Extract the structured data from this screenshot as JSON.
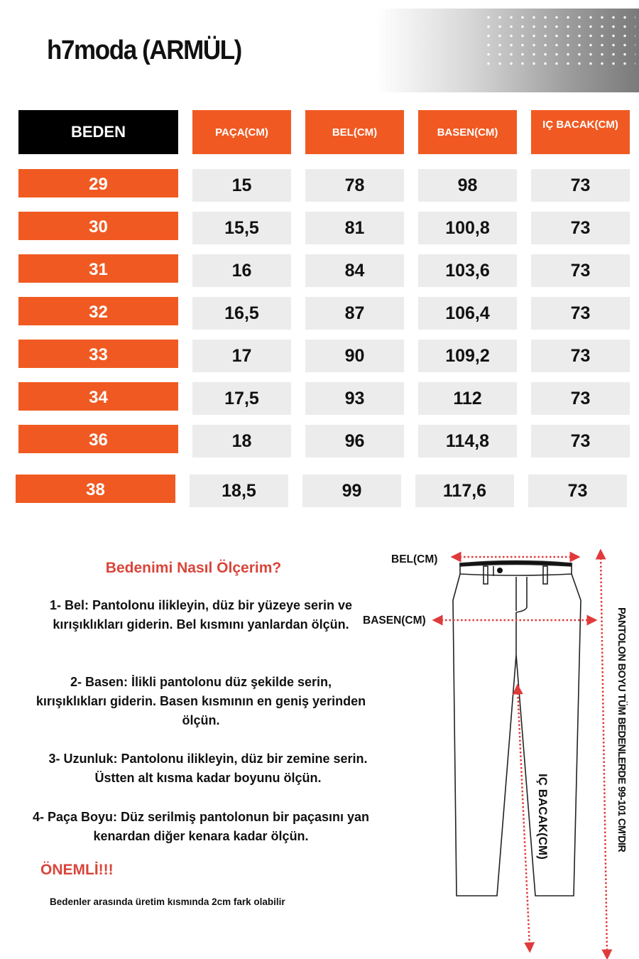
{
  "brand": "h7moda (ARMÜL)",
  "table": {
    "headers": [
      "BEDEN",
      "PAÇA(CM)",
      "BEL(CM)",
      "BASEN(CM)",
      "IÇ BACAK(CM)"
    ],
    "rows": [
      [
        "29",
        "15",
        "78",
        "98",
        "73"
      ],
      [
        "30",
        "15,5",
        "81",
        "100,8",
        "73"
      ],
      [
        "31",
        "16",
        "84",
        "103,6",
        "73"
      ],
      [
        "32",
        "16,5",
        "87",
        "106,4",
        "73"
      ],
      [
        "33",
        "17",
        "90",
        "109,2",
        "73"
      ],
      [
        "34",
        "17,5",
        "93",
        "112",
        "73"
      ],
      [
        "36",
        "18",
        "96",
        "114,8",
        "73"
      ],
      [
        "38",
        "18,5",
        "99",
        "117,6",
        "73"
      ]
    ]
  },
  "howto": {
    "title": "Bedenimi  Nasıl Ölçerim?",
    "steps": [
      "1- Bel: Pantolonu ilikleyin, düz bir yüzeye serin ve kırışıklıkları giderin. Bel kısmını yanlardan ölçün.",
      "2- Basen: İlikli pantolonu düz şekilde serin, kırışıklıkları giderin. Basen kısmının en geniş yerinden ölçün.",
      "3- Uzunluk: Pantolonu ilikleyin, düz bir zemine serin. Üstten alt kısma kadar boyunu ölçün.",
      "4- Paça Boyu: Düz serilmiş pantolonun bir paçasını yan kenardan diğer kenara kadar ölçün."
    ],
    "important": "ÖNEMLİ!!!",
    "note": "Bedenler arasında üretim kısmında 2cm fark olabilir"
  },
  "diagram": {
    "bel_label": "BEL(CM)",
    "basen_label": "BASEN(CM)",
    "inseam_label": "IÇ BACAK(CM)",
    "length_label": "PANTOLON BOYU TÜM BEDENLERDE 99-101 CM'DIR"
  },
  "colors": {
    "accent": "#f05a22",
    "header_dark": "#000000",
    "cell_bg": "#ececec",
    "highlight_text": "#d9453a",
    "arrow": "#e03a3a"
  }
}
